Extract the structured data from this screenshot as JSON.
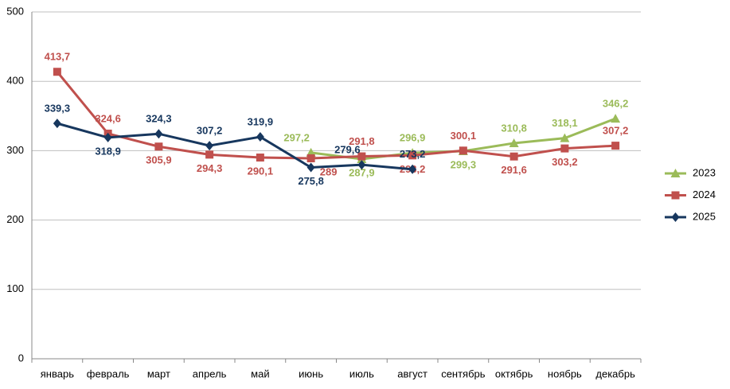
{
  "chart_data": {
    "type": "line",
    "categories": [
      "январь",
      "февраль",
      "март",
      "апрель",
      "май",
      "июнь",
      "июль",
      "август",
      "сентябрь",
      "октябрь",
      "ноябрь",
      "декабрь"
    ],
    "series": [
      {
        "name": "2023",
        "color": "#9bbb59",
        "marker": "triangle",
        "values": [
          null,
          null,
          null,
          null,
          null,
          297.2,
          287.9,
          296.9,
          299.3,
          310.8,
          318.1,
          346.2
        ],
        "value_labels": [
          null,
          null,
          null,
          null,
          null,
          "297,2",
          "287,9",
          "296,9",
          "299,3",
          "310,8",
          "318,1",
          "346,2"
        ]
      },
      {
        "name": "2024",
        "color": "#c0504d",
        "marker": "square",
        "values": [
          413.7,
          324.6,
          305.9,
          294.3,
          290.1,
          289,
          291.8,
          293.2,
          300.1,
          291.6,
          303.2,
          307.2
        ],
        "value_labels": [
          "413,7",
          "324,6",
          "305,9",
          "294,3",
          "290,1",
          "289",
          "291,8",
          "293,2",
          "300,1",
          "291,6",
          "303,2",
          "307,2"
        ]
      },
      {
        "name": "2025",
        "color": "#17375e",
        "marker": "diamond",
        "values": [
          339.3,
          318.9,
          324.3,
          307.2,
          319.9,
          275.8,
          279.6,
          273.2,
          null,
          null,
          null,
          null
        ],
        "value_labels": [
          "339,3",
          "318,9",
          "324,3",
          "307,2",
          "319,9",
          "275,8",
          "279,6",
          "273,2",
          null,
          null,
          null,
          null
        ]
      }
    ],
    "ylim": [
      0,
      500
    ],
    "yticks": [
      0,
      100,
      200,
      300,
      400,
      500
    ],
    "grid": true,
    "legend": "right"
  }
}
